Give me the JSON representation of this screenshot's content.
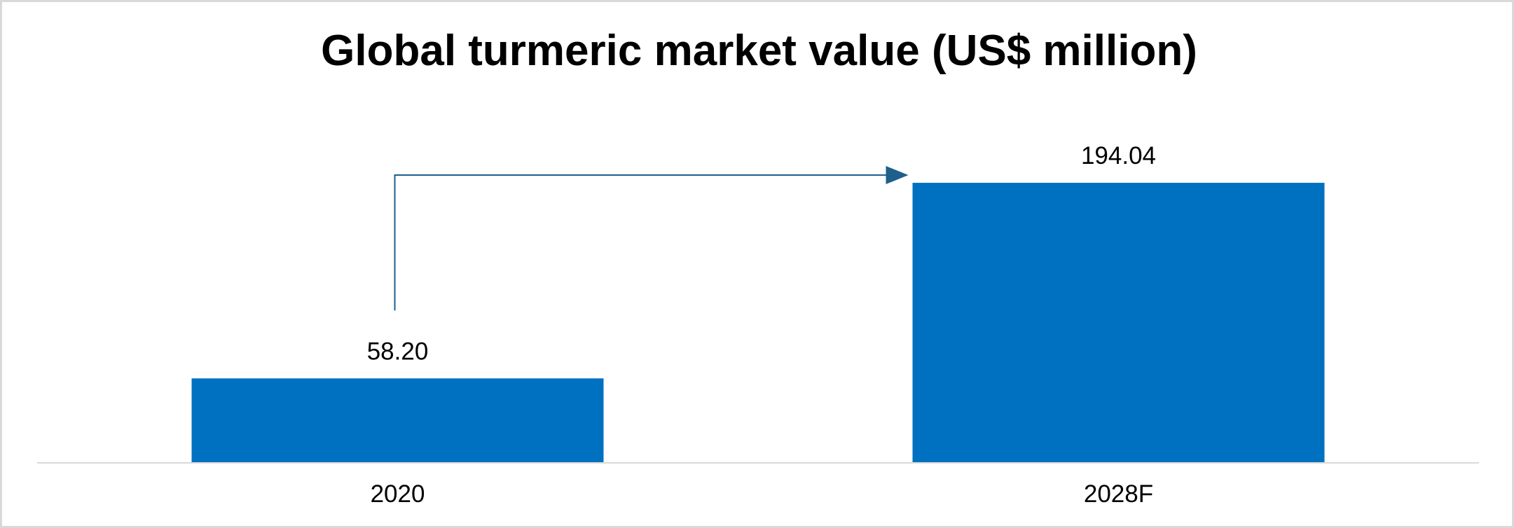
{
  "chart_data": {
    "type": "bar",
    "title": "Global turmeric market value (US$ million)",
    "categories": [
      "2020",
      "2028F"
    ],
    "values": [
      58.2,
      194.04
    ],
    "value_labels": [
      "58.20",
      "194.04"
    ],
    "xlabel": "",
    "ylabel": "",
    "ylim": [
      0,
      250
    ],
    "grid": false,
    "legend": "none",
    "annotation": "growth arrow from 2020 to 2028F",
    "colors": {
      "bar": "#0070C0",
      "arrow": "#1F5F8B",
      "axis": "#d9d9d9"
    }
  }
}
